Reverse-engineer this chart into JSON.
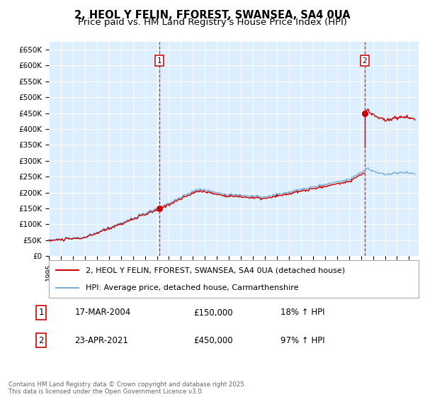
{
  "title": "2, HEOL Y FELIN, FFOREST, SWANSEA, SA4 0UA",
  "subtitle": "Price paid vs. HM Land Registry's House Price Index (HPI)",
  "bg_color": "#ddeeff",
  "fig_bg_color": "#ffffff",
  "hpi_line_color": "#7bafd4",
  "sale_line_color": "#cc0000",
  "vline_color": "#cc0000",
  "grid_color": "#ffffff",
  "ylim": [
    0,
    675000
  ],
  "yticks": [
    0,
    50000,
    100000,
    150000,
    200000,
    250000,
    300000,
    350000,
    400000,
    450000,
    500000,
    550000,
    600000,
    650000
  ],
  "ytick_labels": [
    "£0",
    "£50K",
    "£100K",
    "£150K",
    "£200K",
    "£250K",
    "£300K",
    "£350K",
    "£400K",
    "£450K",
    "£500K",
    "£550K",
    "£600K",
    "£650K"
  ],
  "xlim_start": 1995.0,
  "xlim_end": 2025.8,
  "sale1_x": 2004.21,
  "sale1_y": 150000,
  "sale2_x": 2021.31,
  "sale2_y": 450000,
  "legend_line1": "2, HEOL Y FELIN, FFOREST, SWANSEA, SA4 0UA (detached house)",
  "legend_line2": "HPI: Average price, detached house, Carmarthenshire",
  "footer": "Contains HM Land Registry data © Crown copyright and database right 2025.\nThis data is licensed under the Open Government Licence v3.0.",
  "title_fontsize": 10.5,
  "subtitle_fontsize": 9.5,
  "tick_fontsize": 7.5,
  "legend_fontsize": 8,
  "annotation_fontsize": 8.5
}
